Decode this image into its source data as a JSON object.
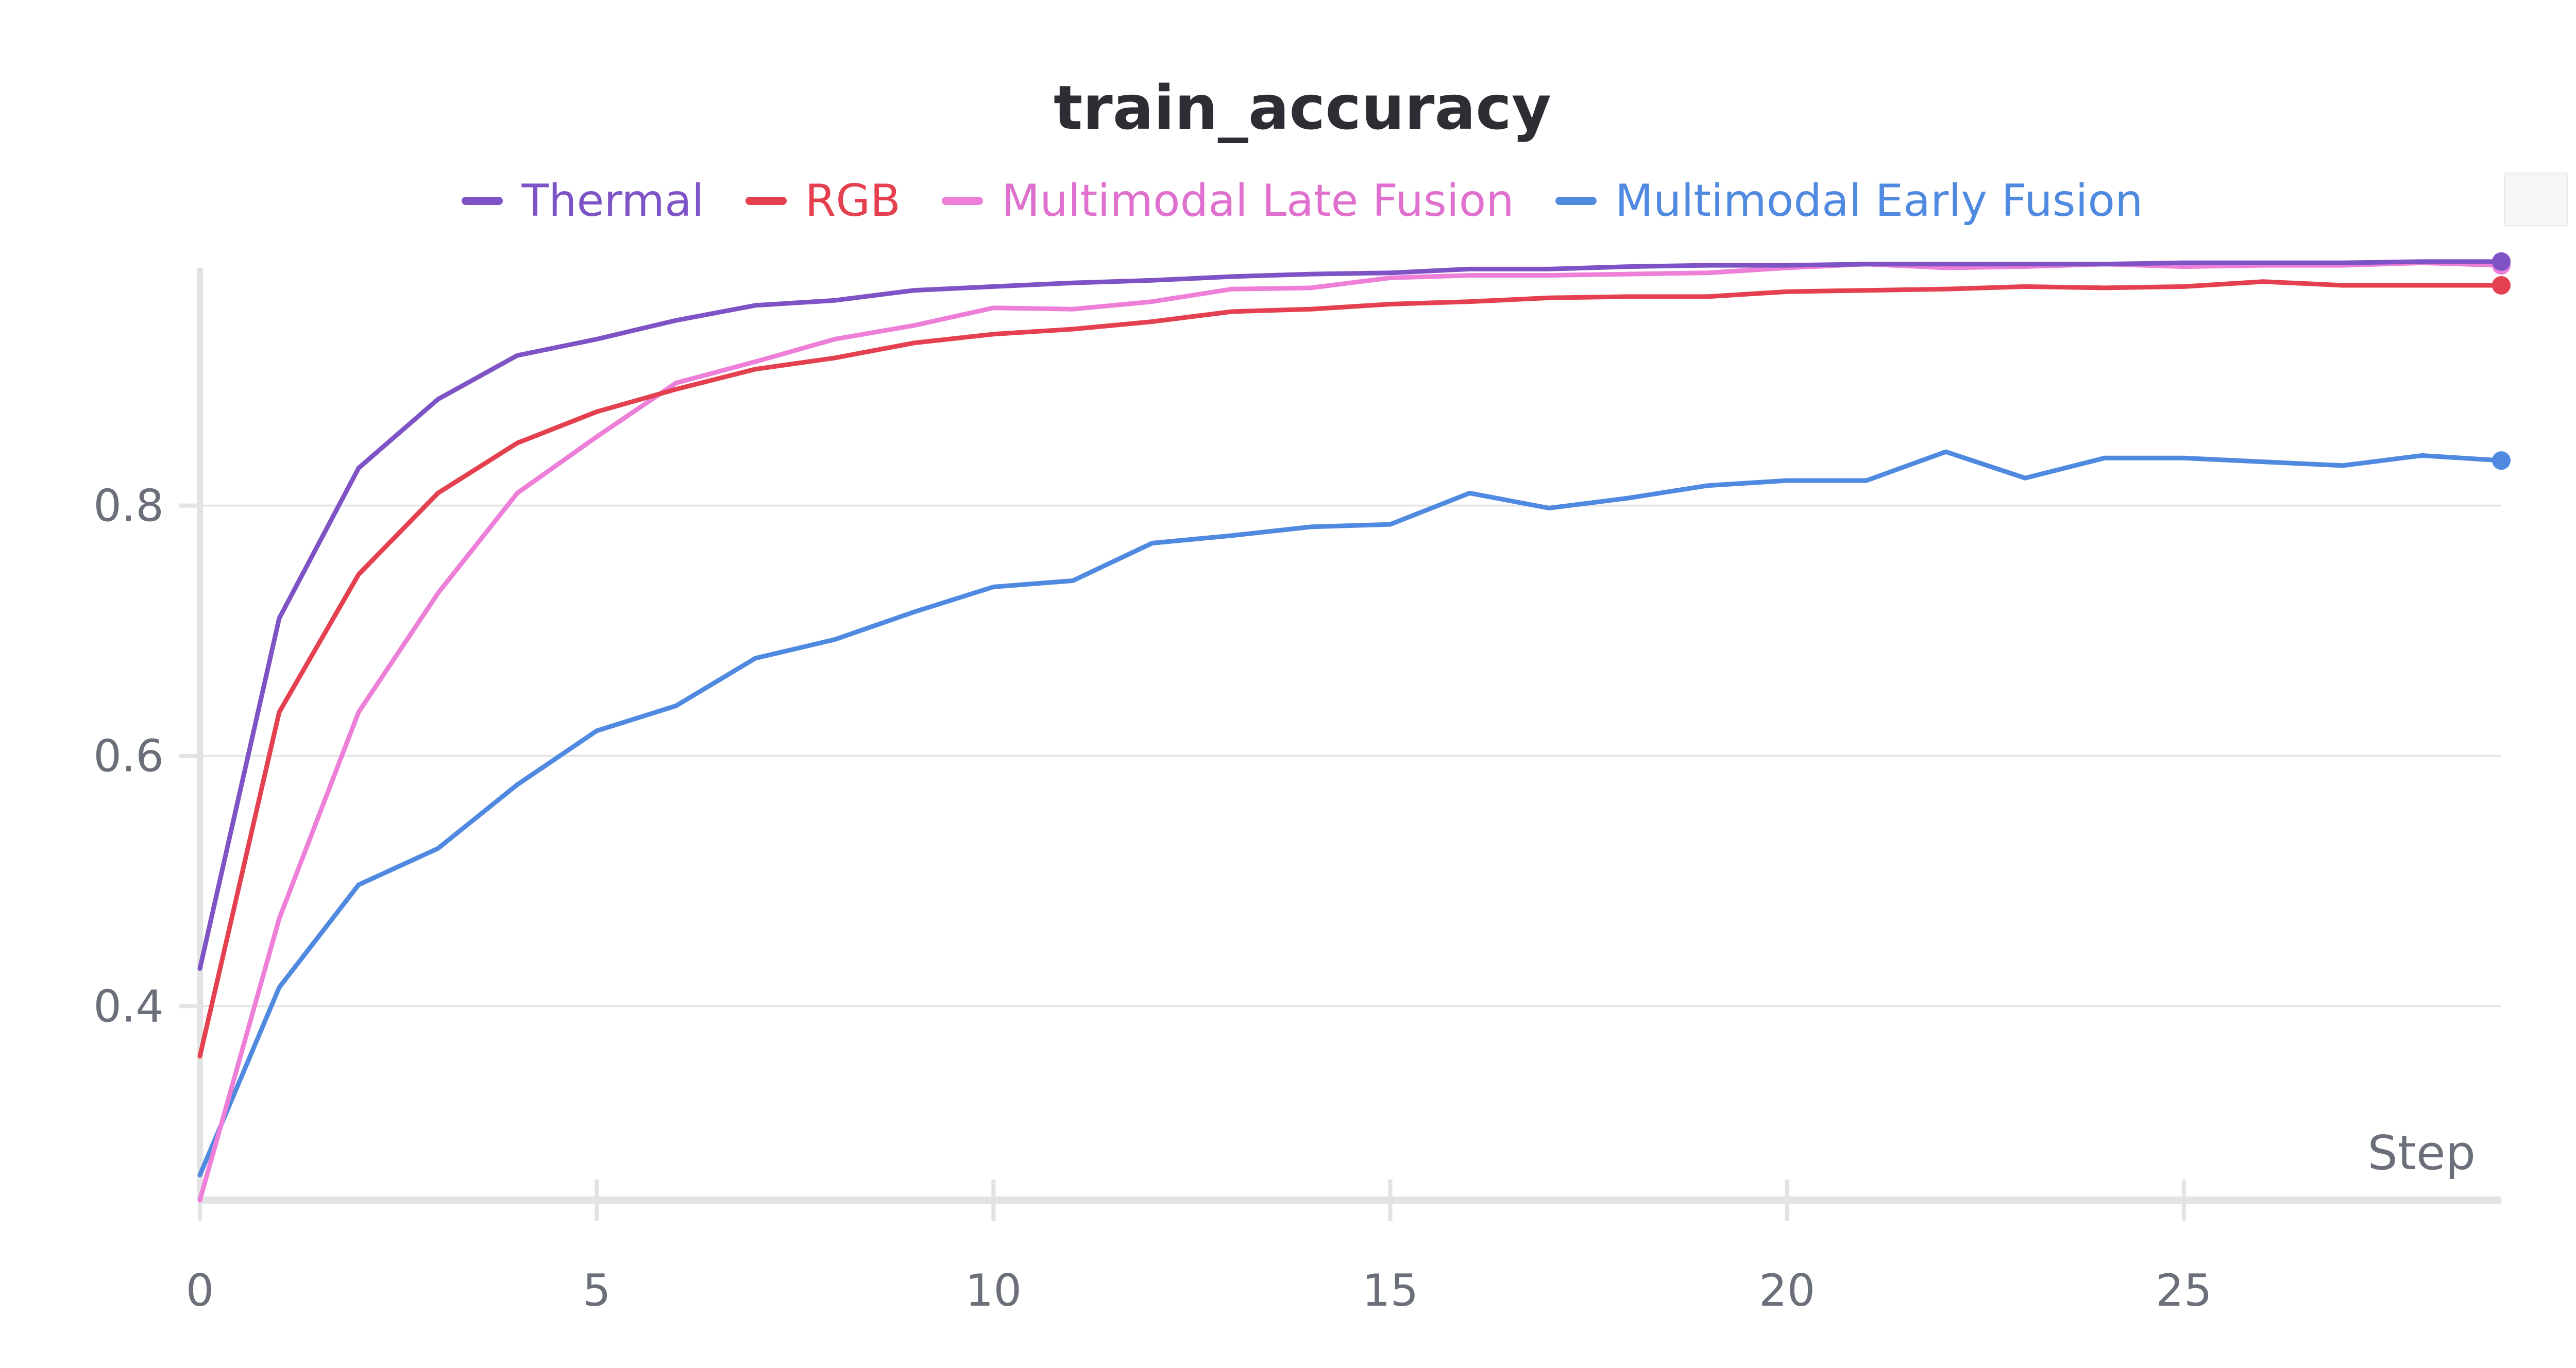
{
  "chart_data": {
    "type": "line",
    "title": "train_accuracy",
    "xlabel": "Step",
    "ylabel": "",
    "xlim": [
      0,
      29
    ],
    "ylim": [
      0.245,
      0.99
    ],
    "x_ticks": [
      0,
      5,
      10,
      15,
      20,
      25
    ],
    "y_ticks": [
      0.4,
      0.6,
      0.8
    ],
    "grid": true,
    "legend_position": "top-center",
    "x": [
      0,
      1,
      2,
      3,
      4,
      5,
      6,
      7,
      8,
      9,
      10,
      11,
      12,
      13,
      14,
      15,
      16,
      17,
      18,
      19,
      20,
      21,
      22,
      23,
      24,
      25,
      26,
      27,
      28,
      29
    ],
    "series": [
      {
        "name": "Thermal",
        "color": "#7e53c5",
        "values": [
          0.43,
          0.71,
          0.83,
          0.885,
          0.92,
          0.933,
          0.948,
          0.96,
          0.964,
          0.972,
          0.975,
          0.978,
          0.98,
          0.983,
          0.985,
          0.986,
          0.989,
          0.989,
          0.991,
          0.992,
          0.992,
          0.993,
          0.993,
          0.993,
          0.993,
          0.994,
          0.994,
          0.994,
          0.995,
          0.995
        ]
      },
      {
        "name": "RGB",
        "color": "#e5404f",
        "values": [
          0.36,
          0.635,
          0.745,
          0.81,
          0.85,
          0.875,
          0.893,
          0.909,
          0.918,
          0.93,
          0.937,
          0.941,
          0.947,
          0.955,
          0.957,
          0.961,
          0.963,
          0.966,
          0.967,
          0.967,
          0.971,
          0.972,
          0.973,
          0.975,
          0.974,
          0.975,
          0.979,
          0.976,
          0.976,
          0.976
        ]
      },
      {
        "name": "Multimodal Late Fusion",
        "color": "#ee7fd9",
        "values": [
          0.245,
          0.47,
          0.635,
          0.73,
          0.81,
          0.855,
          0.898,
          0.915,
          0.933,
          0.944,
          0.958,
          0.957,
          0.963,
          0.973,
          0.974,
          0.982,
          0.984,
          0.984,
          0.985,
          0.986,
          0.99,
          0.993,
          0.99,
          0.991,
          0.993,
          0.991,
          0.992,
          0.992,
          0.994,
          0.992
        ]
      },
      {
        "name": "Multimodal Early Fusion",
        "color": "#4f89e0",
        "values": [
          0.265,
          0.415,
          0.497,
          0.526,
          0.577,
          0.62,
          0.64,
          0.678,
          0.693,
          0.715,
          0.735,
          0.74,
          0.77,
          0.776,
          0.783,
          0.785,
          0.81,
          0.798,
          0.806,
          0.816,
          0.82,
          0.82,
          0.843,
          0.822,
          0.838,
          0.838,
          0.835,
          0.832,
          0.84,
          0.836
        ]
      }
    ]
  }
}
